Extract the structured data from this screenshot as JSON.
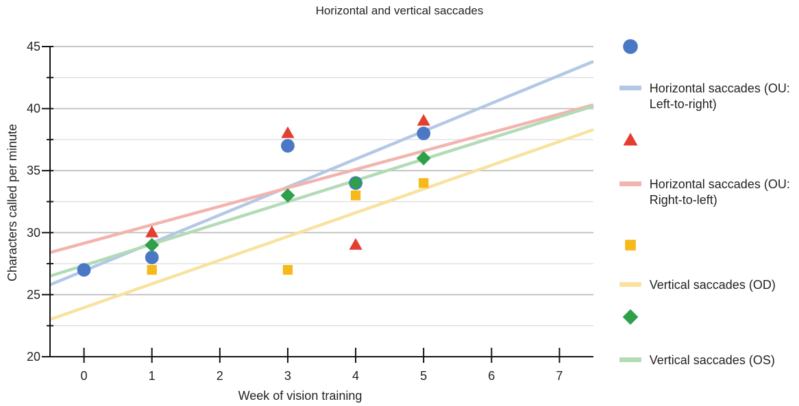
{
  "chart_data": {
    "type": "scatter",
    "title": "Horizontal and vertical saccades",
    "xlabel": "Week of vision training",
    "ylabel": "Characters called per minute",
    "xlim": [
      -0.5,
      7.5
    ],
    "ylim": [
      20,
      45
    ],
    "x_ticks": [
      0,
      1,
      2,
      3,
      4,
      5,
      6,
      7
    ],
    "y_ticks": [
      20,
      25,
      30,
      35,
      40,
      45
    ],
    "grid": true,
    "legend_position": "right",
    "series": [
      {
        "label": "Horizontal saccades (OU: Left-to-right)",
        "marker": "circle",
        "marker_color": "#4a78c4",
        "line_color": "#b4c8e6",
        "points": [
          {
            "x": 0,
            "y": 27
          },
          {
            "x": 1,
            "y": 28
          },
          {
            "x": 3,
            "y": 37
          },
          {
            "x": 4,
            "y": 34
          },
          {
            "x": 5,
            "y": 38
          }
        ],
        "trendline": {
          "y_at_xmin": 25.8,
          "y_at_xmax": 43.8
        }
      },
      {
        "label": "Horizontal saccades (OU: Right-to-left)",
        "marker": "triangle",
        "marker_color": "#e53d2f",
        "line_color": "#f2b4ae",
        "points": [
          {
            "x": 1,
            "y": 30
          },
          {
            "x": 3,
            "y": 38
          },
          {
            "x": 4,
            "y": 29
          },
          {
            "x": 5,
            "y": 39
          }
        ],
        "trendline": {
          "y_at_xmin": 28.4,
          "y_at_xmax": 40.3
        }
      },
      {
        "label": "Vertical saccades (OD)",
        "marker": "square",
        "marker_color": "#f6b91a",
        "line_color": "#f9e2a0",
        "points": [
          {
            "x": 1,
            "y": 27
          },
          {
            "x": 3,
            "y": 27
          },
          {
            "x": 4,
            "y": 33
          },
          {
            "x": 5,
            "y": 34
          }
        ],
        "trendline": {
          "y_at_xmin": 23.0,
          "y_at_xmax": 38.3
        }
      },
      {
        "label": "Vertical saccades (OS)",
        "marker": "diamond",
        "marker_color": "#2ea04a",
        "line_color": "#b2dbb6",
        "points": [
          {
            "x": 1,
            "y": 29
          },
          {
            "x": 3,
            "y": 33
          },
          {
            "x": 4,
            "y": 34
          },
          {
            "x": 5,
            "y": 36
          }
        ],
        "trendline": {
          "y_at_xmin": 26.5,
          "y_at_xmax": 40.2
        }
      }
    ]
  }
}
